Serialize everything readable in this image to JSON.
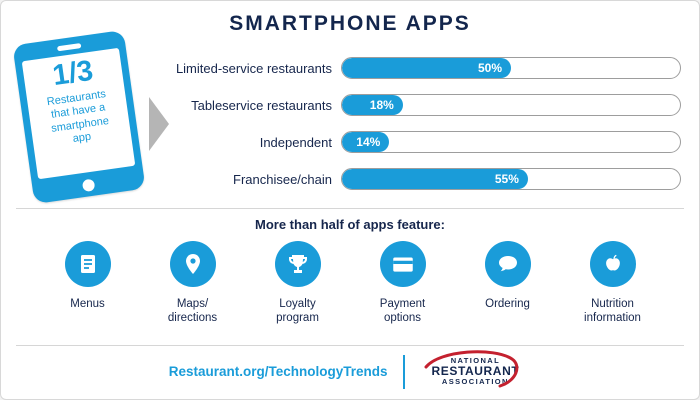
{
  "title": "SMARTPHONE APPS",
  "phone": {
    "fraction": "1/3",
    "caption": "Restaurants\nthat have a\nsmartphone\napp"
  },
  "chart_data": {
    "type": "bar",
    "orientation": "horizontal",
    "title": "SMARTPHONE APPS",
    "categories": [
      "Limited-service restaurants",
      "Tableservice restaurants",
      "Independent",
      "Franchisee/chain"
    ],
    "values": [
      50,
      18,
      14,
      55
    ],
    "value_labels": [
      "50%",
      "18%",
      "14%",
      "55%"
    ],
    "xlim": [
      0,
      100
    ],
    "bar_color": "#1a9cd9",
    "track_color": "#ffffff",
    "grid": false,
    "legend": false
  },
  "features": {
    "heading": "More than half of apps feature:",
    "items": [
      {
        "label": "Menus",
        "icon": "menu-document-icon"
      },
      {
        "label": "Maps/\ndirections",
        "icon": "map-pin-icon"
      },
      {
        "label": "Loyalty\nprogram",
        "icon": "trophy-icon"
      },
      {
        "label": "Payment\noptions",
        "icon": "credit-card-icon"
      },
      {
        "label": "Ordering",
        "icon": "speech-bubble-icon"
      },
      {
        "label": "Nutrition\ninformation",
        "icon": "apple-icon"
      }
    ]
  },
  "footer": {
    "url": "Restaurant.org/TechnologyTrends",
    "logo": {
      "line1": "NATIONAL",
      "line2": "RESTAURANT",
      "line3": "ASSOCIATION"
    }
  },
  "colors": {
    "accent_blue": "#1a9cd9",
    "navy": "#16264c",
    "logo_red": "#c4212f",
    "arrow_gray": "#b5b5b5"
  }
}
